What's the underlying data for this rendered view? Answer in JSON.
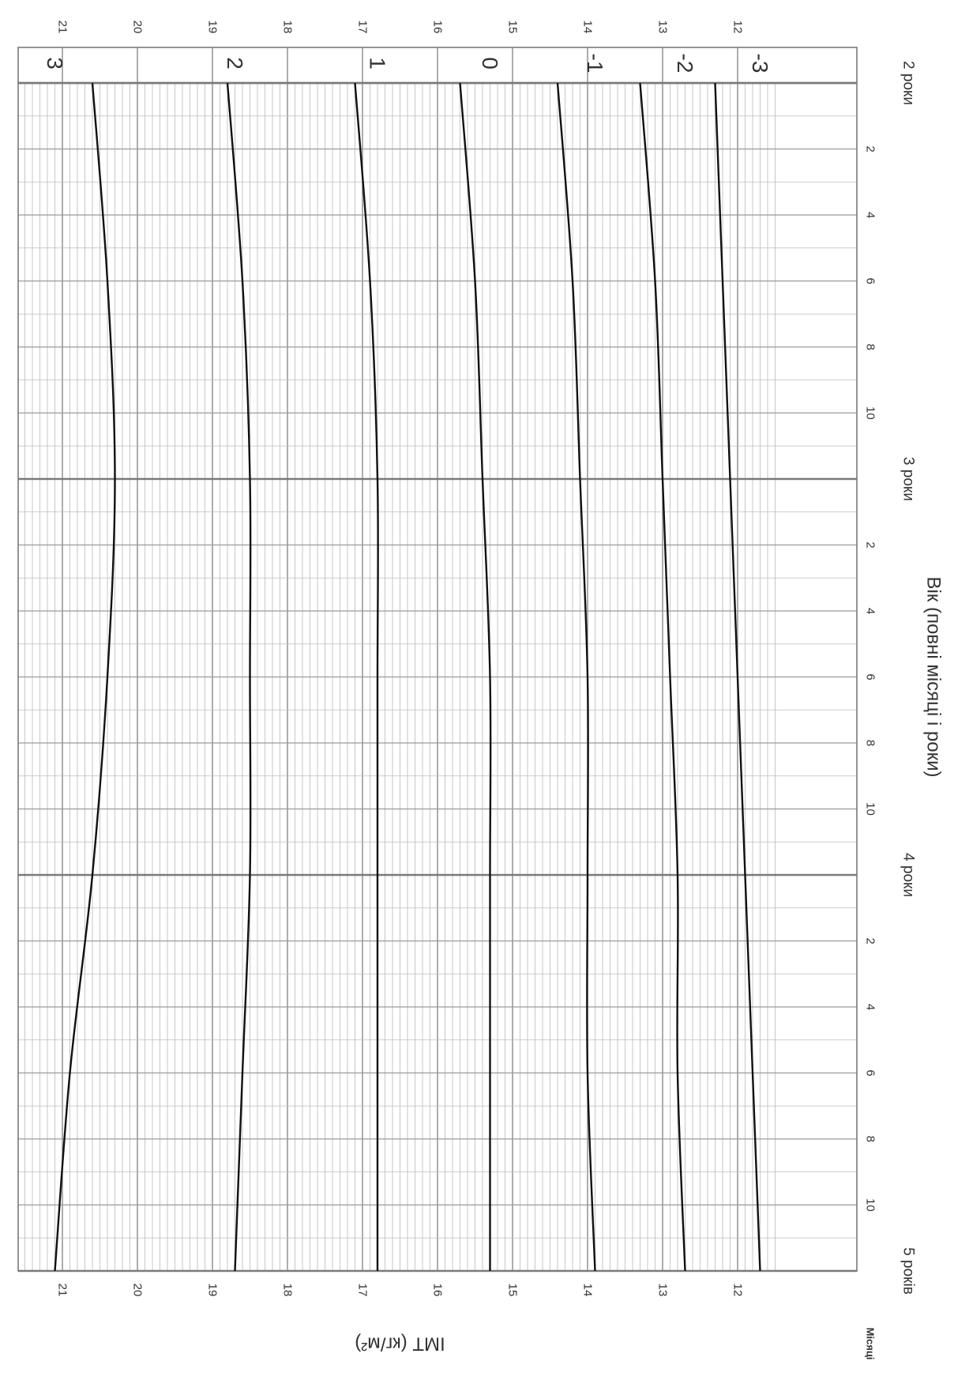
{
  "chart_data": {
    "type": "line",
    "orientation": "rotated 90 degrees clockwise (age increases top to bottom, BMI increases right to left)",
    "xlabel": "Вік (повні місяці і роки)",
    "ylabel": "ІМТ (кг/м²)",
    "months_label": "Місяці",
    "x_unit": "months of age",
    "xlim": [
      24,
      60
    ],
    "ylim": [
      11.5,
      21.5
    ],
    "y_ticks": [
      21,
      20,
      19,
      18,
      17,
      16,
      15,
      14,
      13,
      12
    ],
    "month_ticks": [
      {
        "age": 26,
        "label": "2"
      },
      {
        "age": 28,
        "label": "4"
      },
      {
        "age": 30,
        "label": "6"
      },
      {
        "age": 32,
        "label": "8"
      },
      {
        "age": 34,
        "label": "10"
      },
      {
        "age": 38,
        "label": "2"
      },
      {
        "age": 40,
        "label": "4"
      },
      {
        "age": 42,
        "label": "6"
      },
      {
        "age": 44,
        "label": "8"
      },
      {
        "age": 46,
        "label": "10"
      },
      {
        "age": 50,
        "label": "2"
      },
      {
        "age": 52,
        "label": "4"
      },
      {
        "age": 54,
        "label": "6"
      },
      {
        "age": 56,
        "label": "8"
      },
      {
        "age": 58,
        "label": "10"
      }
    ],
    "year_labels": [
      {
        "age": 24,
        "label": "2 роки"
      },
      {
        "age": 36,
        "label": "3 роки"
      },
      {
        "age": 48,
        "label": "4 роки"
      },
      {
        "age": 60,
        "label": "5 років"
      }
    ],
    "x": [
      24,
      30,
      36,
      42,
      48,
      54,
      60
    ],
    "series": [
      {
        "name": "3",
        "values": [
          20.6,
          20.4,
          20.3,
          20.4,
          20.6,
          20.9,
          21.1
        ]
      },
      {
        "name": "2",
        "values": [
          18.8,
          18.6,
          18.5,
          18.5,
          18.5,
          18.6,
          18.7
        ]
      },
      {
        "name": "1",
        "values": [
          17.1,
          16.9,
          16.8,
          16.8,
          16.8,
          16.8,
          16.8
        ]
      },
      {
        "name": "0",
        "values": [
          15.7,
          15.5,
          15.4,
          15.3,
          15.3,
          15.3,
          15.3
        ]
      },
      {
        "name": "-1",
        "values": [
          14.4,
          14.2,
          14.1,
          14.0,
          14.0,
          14.0,
          13.9
        ]
      },
      {
        "name": "-2",
        "values": [
          13.3,
          13.1,
          13.0,
          12.9,
          12.8,
          12.8,
          12.7
        ]
      },
      {
        "name": "-3",
        "values": [
          12.3,
          12.2,
          12.1,
          12.0,
          11.9,
          11.8,
          11.7
        ]
      }
    ],
    "grid": true
  }
}
